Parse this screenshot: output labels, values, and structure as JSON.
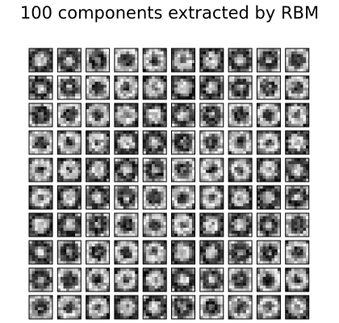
{
  "chart_data": {
    "type": "heatmap",
    "title": "100 components extracted by RBM",
    "rows": 10,
    "cols": 10,
    "component_count": 100,
    "component_resolution": [
      8,
      8
    ],
    "colormap": "gray",
    "axes_visible": false,
    "xlabel": "",
    "ylabel": ""
  },
  "colors": {
    "background": "#ffffff",
    "frame": "#000000"
  }
}
